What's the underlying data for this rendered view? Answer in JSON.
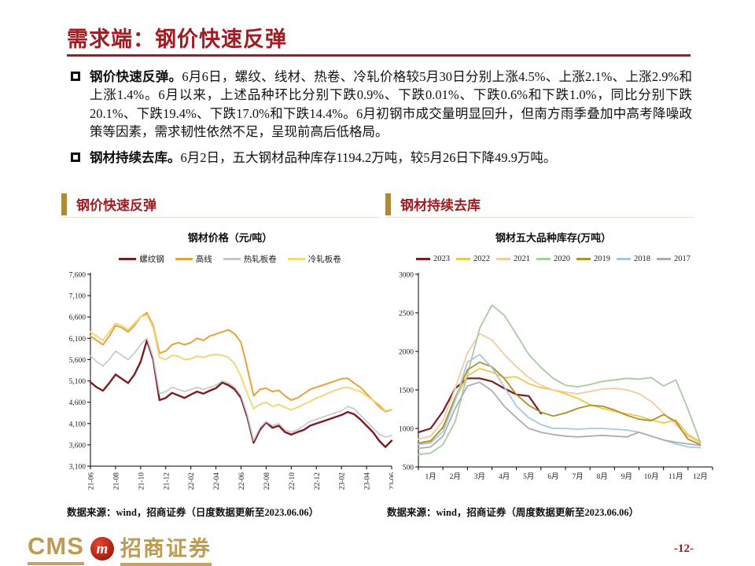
{
  "slide": {
    "title": "需求端：钢价快速反弹",
    "page_number": "-12-",
    "accent_red": "#A11D23",
    "accent_gold": "#AD8B3A"
  },
  "bullets": [
    {
      "lead": "钢价快速反弹。",
      "text": "6月6日，螺纹、线材、热卷、冷轧价格较5月30日分别上涨4.5%、上涨2.1%、上涨2.9%和上涨1.4%。6月以来，上述品种环比分别下跌0.9%、下跌0.01%、下跌0.6%和下跌1.0%，同比分别下跌20.1%、下跌19.4%、下跌17.0%和下跌14.4%。6月初钢市成交量明显回升，但南方雨季叠加中高考降噪政策等因素，需求韧性依然不足，呈现前高后低格局。"
    },
    {
      "lead": "钢材持续去库。",
      "text": "6月2日，五大钢材品种库存1194.2万吨，较5月26日下降49.9万吨。"
    }
  ],
  "sections": [
    {
      "title": "钢价快速反弹",
      "source": "数据来源：wind，招商证券（日度数据更新至2023.06.06）"
    },
    {
      "title": "钢材持续去库",
      "source": "数据来源：wind，招商证券（周度数据更新至2023.06.06）"
    }
  ],
  "logo": {
    "cms": "CMS",
    "badge_letter": "m",
    "company": "招商证券"
  },
  "chart_data": [
    {
      "type": "line",
      "title": "钢材价格（元/吨）",
      "ylim": [
        3100,
        7600
      ],
      "yticks": [
        {
          "v": 7600,
          "label": "7,600"
        },
        {
          "v": 7100,
          "label": "7,100"
        },
        {
          "v": 6600,
          "label": "6,600"
        },
        {
          "v": 6100,
          "label": "6,100"
        },
        {
          "v": 5600,
          "label": "5,600"
        },
        {
          "v": 5100,
          "label": "5,100"
        },
        {
          "v": 4600,
          "label": "4,600"
        },
        {
          "v": 4100,
          "label": "4,100"
        },
        {
          "v": 3600,
          "label": "3,600"
        },
        {
          "v": 3100,
          "label": "3,100"
        }
      ],
      "xticklabels": [
        "21-06",
        "21-08",
        "21-10",
        "21-12",
        "22-02",
        "22-04",
        "22-06",
        "22-08",
        "22-10",
        "22-12",
        "23-02",
        "23-04",
        "23-06"
      ],
      "x_step_months": 0.5,
      "x_total_months": 24,
      "x_rotate": true,
      "grid": false,
      "legend_position": "top",
      "series": [
        {
          "name": "螺纹钢",
          "color": "#7D1B22",
          "width": 2.4,
          "values": [
            5070,
            4950,
            4870,
            5050,
            5250,
            5150,
            5050,
            5250,
            5550,
            6050,
            5600,
            4650,
            4700,
            4820,
            4760,
            4700,
            4780,
            4850,
            4800,
            4870,
            4930,
            5060,
            5000,
            4900,
            4700,
            4250,
            3650,
            3950,
            4130,
            4000,
            4050,
            3900,
            3840,
            3900,
            3950,
            4050,
            4100,
            4150,
            4200,
            4250,
            4300,
            4370,
            4320,
            4200,
            4050,
            3900,
            3700,
            3550,
            3700
          ]
        },
        {
          "name": "高线",
          "color": "#E9A23B",
          "width": 2.0,
          "values": [
            6150,
            6050,
            5950,
            6150,
            6400,
            6350,
            6250,
            6400,
            6600,
            6700,
            6400,
            5750,
            5800,
            5950,
            6000,
            5950,
            6000,
            6100,
            6050,
            6150,
            6200,
            6250,
            6300,
            6200,
            6000,
            5400,
            4750,
            4900,
            4930,
            4850,
            4880,
            4750,
            4650,
            4700,
            4800,
            4900,
            4950,
            5000,
            5050,
            5100,
            5150,
            5160,
            5050,
            4950,
            4800,
            4650,
            4500,
            4380,
            4420
          ]
        },
        {
          "name": "热轧板卷",
          "color": "#C6C6C6",
          "width": 1.6,
          "values": [
            5690,
            5550,
            5450,
            5600,
            5800,
            5700,
            5600,
            5750,
            5950,
            6100,
            5650,
            4800,
            4850,
            4950,
            4900,
            4850,
            4900,
            4950,
            4900,
            4950,
            5000,
            5100,
            5050,
            4950,
            4750,
            4300,
            3700,
            4000,
            4150,
            4050,
            4100,
            3950,
            3900,
            3950,
            4050,
            4150,
            4200,
            4250,
            4300,
            4350,
            4400,
            4500,
            4450,
            4300,
            4150,
            4000,
            3850,
            3780,
            3820
          ]
        },
        {
          "name": "冷轧板卷",
          "color": "#F3D678",
          "width": 2.0,
          "values": [
            6250,
            6150,
            6050,
            6250,
            6450,
            6400,
            6300,
            6450,
            6600,
            6650,
            6350,
            5650,
            5600,
            5700,
            5680,
            5600,
            5620,
            5680,
            5650,
            5700,
            5720,
            5700,
            5650,
            5500,
            5200,
            4800,
            4450,
            4550,
            4600,
            4500,
            4550,
            4480,
            4420,
            4480,
            4550,
            4620,
            4700,
            4750,
            4820,
            4880,
            4930,
            4950,
            4900,
            4850,
            4750,
            4650,
            4550,
            4400,
            4430
          ]
        }
      ]
    },
    {
      "type": "line",
      "title": "钢材五大品种库存(万吨）",
      "ylim": [
        500,
        3000
      ],
      "yticks": [
        {
          "v": 3000,
          "label": "3000"
        },
        {
          "v": 2500,
          "label": "2500"
        },
        {
          "v": 2000,
          "label": "2000"
        },
        {
          "v": 1500,
          "label": "1500"
        },
        {
          "v": 1000,
          "label": "1000"
        },
        {
          "v": 500,
          "label": "500"
        }
      ],
      "xticklabels": [
        "1月",
        "2月",
        "3月",
        "4月",
        "5月",
        "6月",
        "7月",
        "8月",
        "9月",
        "10月",
        "11月",
        "12月"
      ],
      "x_step_months": 0.5,
      "x_total_months": 12,
      "x_rotate": false,
      "grid": false,
      "legend_position": "top",
      "series": [
        {
          "name": "2023",
          "color": "#7D1B22",
          "width": 2.2,
          "values": [
            950,
            1000,
            1220,
            1520,
            1650,
            1650,
            1610,
            1520,
            1440,
            1420,
            1194
          ]
        },
        {
          "name": "2022",
          "color": "#EFC84C",
          "width": 1.8,
          "values": [
            790,
            830,
            1020,
            1380,
            1680,
            1780,
            1730,
            1660,
            1670,
            1580,
            1530,
            1500,
            1450,
            1390,
            1310,
            1260,
            1220,
            1190,
            1160,
            1110,
            1070,
            1110,
            920,
            830
          ]
        },
        {
          "name": "2021",
          "color": "#F3CBA0",
          "width": 1.8,
          "values": [
            860,
            900,
            1100,
            1520,
            1980,
            2230,
            2150,
            1960,
            1800,
            1660,
            1560,
            1500,
            1470,
            1450,
            1480,
            1510,
            1520,
            1500,
            1450,
            1350,
            1200,
            1050,
            900,
            810
          ]
        },
        {
          "name": "2020",
          "color": "#A8CBA2",
          "width": 1.8,
          "values": [
            660,
            680,
            790,
            1090,
            1700,
            2300,
            2600,
            2470,
            2220,
            1960,
            1790,
            1650,
            1560,
            1540,
            1570,
            1610,
            1630,
            1650,
            1640,
            1660,
            1550,
            1630,
            1250,
            820
          ]
        },
        {
          "name": "2019",
          "color": "#AD9129",
          "width": 1.8,
          "values": [
            810,
            840,
            1010,
            1400,
            1760,
            1860,
            1800,
            1650,
            1440,
            1300,
            1210,
            1160,
            1200,
            1260,
            1300,
            1290,
            1240,
            1170,
            1120,
            1100,
            1180,
            1090,
            860,
            790
          ]
        },
        {
          "name": "2018",
          "color": "#A6C8E4",
          "width": 1.8,
          "values": [
            790,
            810,
            960,
            1360,
            1860,
            1960,
            1790,
            1540,
            1290,
            1140,
            1050,
            1000,
            1000,
            990,
            1000,
            1000,
            990,
            980,
            950,
            900,
            850,
            800,
            760,
            750
          ]
        },
        {
          "name": "2017",
          "color": "#ADADAD",
          "width": 1.8,
          "values": [
            740,
            760,
            900,
            1260,
            1550,
            1600,
            1490,
            1290,
            1140,
            1000,
            950,
            920,
            900,
            890,
            900,
            910,
            900,
            890,
            950,
            900,
            850,
            820,
            800,
            780
          ]
        }
      ]
    }
  ]
}
